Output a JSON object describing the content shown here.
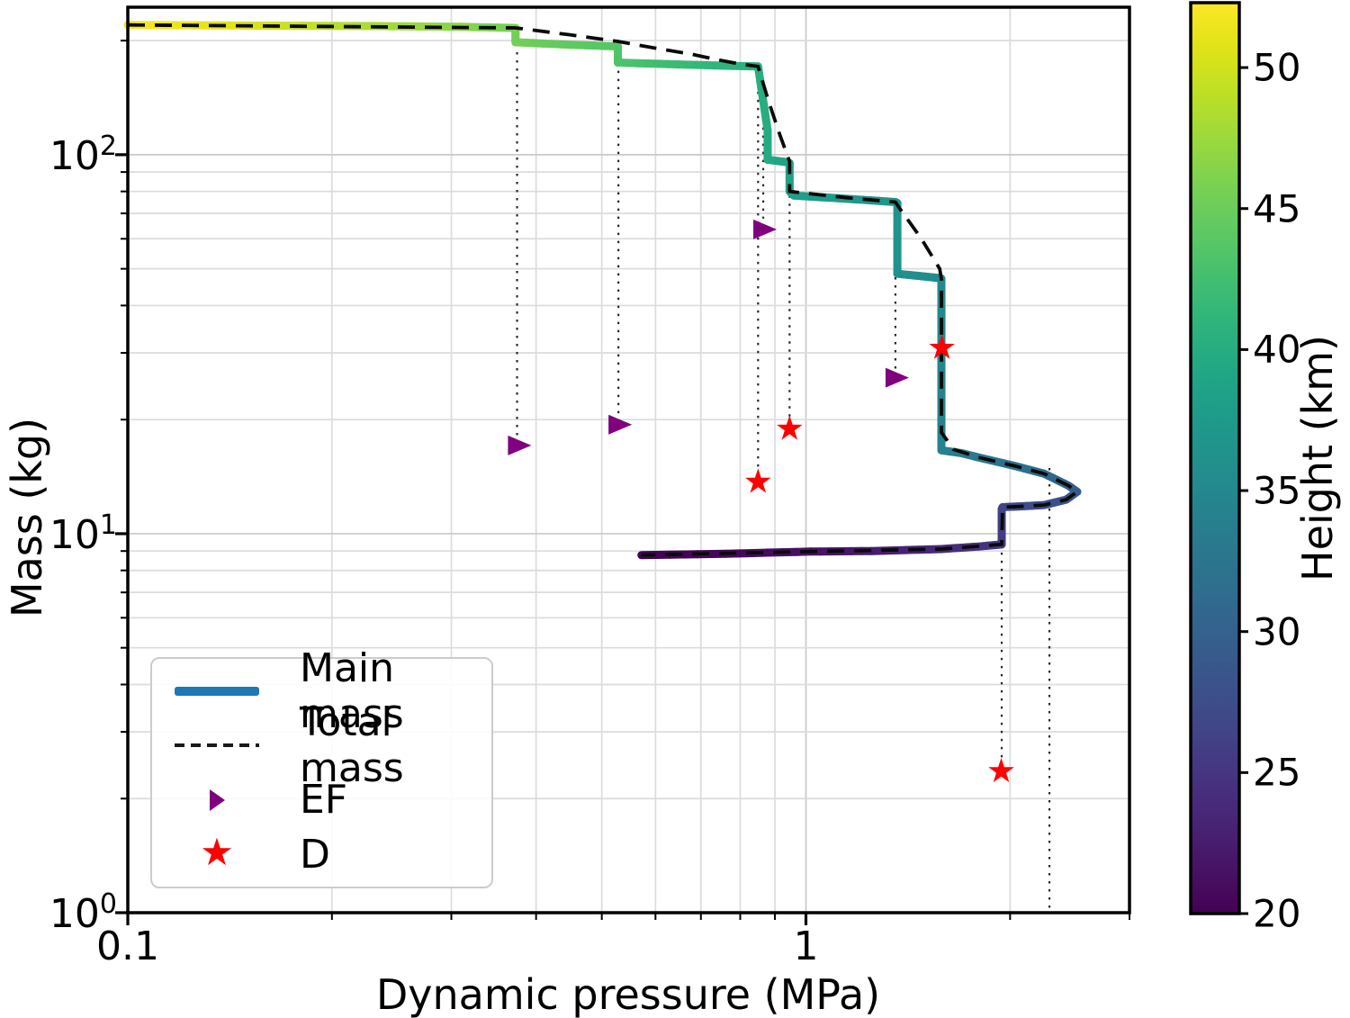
{
  "figure": {
    "background": "#ffffff",
    "xlabel": "Dynamic pressure (MPa)",
    "ylabel": "Mass (kg)",
    "x_axis": {
      "scale": "log",
      "min": 0.1,
      "max": 3.0,
      "major_ticks": [
        {
          "value": 0.1,
          "label": "0.1"
        },
        {
          "value": 1,
          "label": "1"
        }
      ],
      "minor_ticks": [
        0.2,
        0.3,
        0.4,
        0.5,
        0.6,
        0.7,
        0.8,
        0.9,
        2,
        3
      ]
    },
    "y_axis": {
      "scale": "log",
      "min": 1,
      "max": 245,
      "major_ticks": [
        {
          "value": 1,
          "base": "10",
          "exp": "0"
        },
        {
          "value": 10,
          "base": "10",
          "exp": "1"
        },
        {
          "value": 100,
          "base": "10",
          "exp": "2"
        }
      ],
      "minor_ticks": [
        2,
        3,
        4,
        5,
        6,
        7,
        8,
        9,
        20,
        30,
        40,
        50,
        60,
        70,
        80,
        90,
        200
      ]
    },
    "grid": {
      "major_color": "#c9c9c9",
      "minor_color": "#dcdcdc"
    },
    "colorbar": {
      "label": "Height (km)",
      "vmin": 20,
      "vmax": 52.3,
      "ticks": [
        20,
        25,
        30,
        35,
        40,
        45,
        50
      ],
      "colormap": "viridis",
      "viridis_stops": [
        "#440154",
        "#471365",
        "#482475",
        "#463480",
        "#414487",
        "#3b528b",
        "#355f8d",
        "#2f6c8e",
        "#2a788e",
        "#25848e",
        "#21918c",
        "#1e9c89",
        "#22a884",
        "#2fb47c",
        "#44bf70",
        "#5ec962",
        "#7ad151",
        "#9bd93c",
        "#bddf26",
        "#dfe318",
        "#fde725"
      ]
    },
    "legend": {
      "items": [
        {
          "label": "Main mass",
          "marker": "line",
          "color": "#1f77b4"
        },
        {
          "label": "Total mass",
          "marker": "dashed-line",
          "color": "#1a1a1a"
        },
        {
          "label": "EF",
          "marker": "triangle-right",
          "color": "#800080"
        },
        {
          "label": "D",
          "marker": "star",
          "color": "#ff0000"
        }
      ]
    }
  },
  "chart_data": {
    "type": "line",
    "title": "",
    "xlabel": "Dynamic pressure (MPa)",
    "ylabel": "Mass (kg)",
    "x_range": [
      0.1,
      3.0
    ],
    "y_range": [
      1,
      245
    ],
    "color_variable": {
      "name": "Height (km)",
      "min": 20,
      "max": 52.3
    },
    "series": [
      {
        "name": "Main mass",
        "style": "thick line colormapped by height (viridis)",
        "points_x_mass_height": [
          [
            0.1,
            220,
            52.2
          ],
          [
            0.16,
            219,
            50.2
          ],
          [
            0.23,
            218.5,
            48.2
          ],
          [
            0.31,
            217.5,
            46.6
          ],
          [
            0.373,
            216,
            45.6
          ],
          [
            0.373,
            198,
            45.4
          ],
          [
            0.45,
            195,
            44.4
          ],
          [
            0.528,
            193,
            43.6
          ],
          [
            0.528,
            175,
            43.3
          ],
          [
            0.65,
            173,
            41.9
          ],
          [
            0.78,
            171.5,
            40.9
          ],
          [
            0.85,
            171,
            40.3
          ],
          [
            0.878,
            116,
            39.9
          ],
          [
            0.878,
            97,
            39.7
          ],
          [
            0.94,
            95.5,
            38.8
          ],
          [
            0.946,
            95,
            38.7
          ],
          [
            0.946,
            80,
            38.5
          ],
          [
            0.96,
            78,
            38.3
          ],
          [
            1.15,
            76.5,
            37.4
          ],
          [
            1.355,
            75,
            36.7
          ],
          [
            1.364,
            74.5,
            36.6
          ],
          [
            1.364,
            48.5,
            36.3
          ],
          [
            1.48,
            47.8,
            35.8
          ],
          [
            1.581,
            47.2,
            35.4
          ],
          [
            1.584,
            47.0,
            35.3
          ],
          [
            1.584,
            16.6,
            34.2
          ],
          [
            1.7,
            16.3,
            33.6
          ],
          [
            1.795,
            15.9,
            33.0
          ],
          [
            2.03,
            15.1,
            32.0
          ],
          [
            2.245,
            14.4,
            31.0
          ],
          [
            2.437,
            13.4,
            30.0
          ],
          [
            2.512,
            12.9,
            29.3
          ],
          [
            2.42,
            12.3,
            28.6
          ],
          [
            2.245,
            11.9,
            27.8
          ],
          [
            2.066,
            11.8,
            27.2
          ],
          [
            1.95,
            11.75,
            26.8
          ],
          [
            1.944,
            11.6,
            26.6
          ],
          [
            1.944,
            9.37,
            25.4
          ],
          [
            1.8,
            9.25,
            24.6
          ],
          [
            1.584,
            9.11,
            23.8
          ],
          [
            1.25,
            9.0,
            22.4
          ],
          [
            1.014,
            8.97,
            21.5
          ],
          [
            0.76,
            8.85,
            20.6
          ],
          [
            0.572,
            8.78,
            20.0
          ]
        ]
      },
      {
        "name": "Total mass",
        "style": "black dashed line",
        "points_x_mass": [
          [
            0.1,
            220
          ],
          [
            0.373,
            216
          ],
          [
            0.45,
            207
          ],
          [
            0.528,
            199
          ],
          [
            0.6,
            191
          ],
          [
            0.68,
            184
          ],
          [
            0.74,
            178
          ],
          [
            0.8,
            173.5
          ],
          [
            0.85,
            171
          ],
          [
            0.88,
            139
          ],
          [
            0.915,
            113
          ],
          [
            0.946,
            96
          ],
          [
            0.946,
            80
          ],
          [
            1.15,
            77
          ],
          [
            1.355,
            75
          ],
          [
            1.376,
            72
          ],
          [
            1.48,
            60
          ],
          [
            1.575,
            50
          ],
          [
            1.584,
            47
          ],
          [
            1.584,
            18.5
          ],
          [
            1.65,
            16.7
          ],
          [
            1.795,
            15.9
          ],
          [
            2.03,
            15.1
          ],
          [
            2.245,
            14.4
          ],
          [
            2.437,
            13.4
          ],
          [
            2.512,
            12.9
          ],
          [
            2.42,
            12.3
          ],
          [
            2.245,
            11.9
          ],
          [
            2.066,
            11.8
          ],
          [
            1.95,
            11.75
          ],
          [
            1.944,
            9.37
          ],
          [
            1.584,
            9.11
          ],
          [
            1.014,
            8.97
          ],
          [
            0.572,
            8.78
          ]
        ]
      },
      {
        "name": "EF",
        "style": "purple right-pointing triangle markers",
        "points_x_mass": [
          [
            0.376,
            17.1
          ],
          [
            0.529,
            19.4
          ],
          [
            0.865,
            63.5
          ],
          [
            1.355,
            25.8
          ]
        ]
      },
      {
        "name": "D",
        "style": "red star markers",
        "points_x_mass": [
          [
            0.85,
            13.7
          ],
          [
            0.946,
            18.9
          ],
          [
            1.587,
            30.9
          ],
          [
            1.941,
            2.36
          ]
        ]
      }
    ],
    "fragment_connectors": [
      {
        "x": 0.375,
        "mass_top": 216,
        "mass_bottom": 17.9
      },
      {
        "x": 0.529,
        "mass_top": 193,
        "mass_bottom": 20.3
      },
      {
        "x": 0.85,
        "mass_top": 170,
        "mass_bottom": 14.3
      },
      {
        "x": 0.865,
        "mass_top": 118,
        "mass_bottom": 67.8
      },
      {
        "x": 0.946,
        "mass_top": 95,
        "mass_bottom": 19.7
      },
      {
        "x": 1.355,
        "mass_top": 47.5,
        "mass_bottom": 26.9
      },
      {
        "x": 1.944,
        "mass_top": 9.37,
        "mass_bottom": 2.48
      },
      {
        "x": 2.286,
        "mass_top": 14.9,
        "mass_bottom": 1.0
      }
    ]
  }
}
